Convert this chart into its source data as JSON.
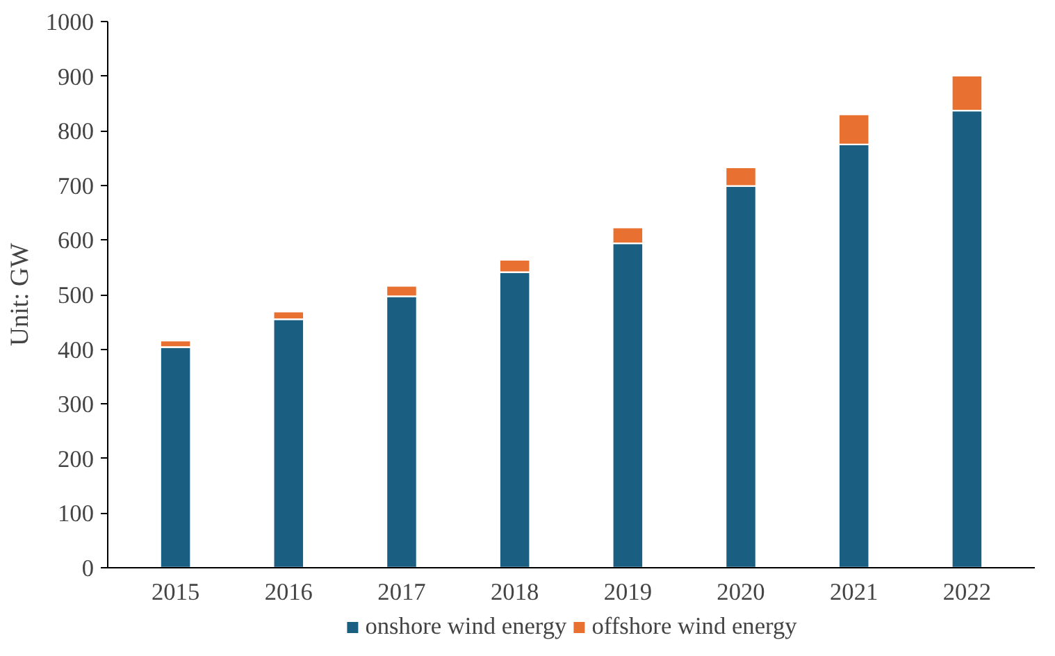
{
  "chart_data": {
    "type": "bar",
    "stacked": true,
    "ylabel": "Unit: GW",
    "categories": [
      "2015",
      "2016",
      "2017",
      "2018",
      "2019",
      "2020",
      "2021",
      "2022"
    ],
    "series": [
      {
        "name": "onshore wind energy",
        "color": "#1a5f82",
        "values": [
          404,
          455,
          497,
          541,
          594,
          699,
          775,
          837
        ]
      },
      {
        "name": "offshore wind energy",
        "color": "#e87132",
        "values": [
          12,
          14,
          19,
          23,
          29,
          34,
          55,
          64
        ]
      }
    ],
    "ylim": [
      0,
      1000
    ],
    "yticks": [
      0,
      100,
      200,
      300,
      400,
      500,
      600,
      700,
      800,
      900,
      1000
    ],
    "grid": false,
    "legend": "bottom"
  }
}
